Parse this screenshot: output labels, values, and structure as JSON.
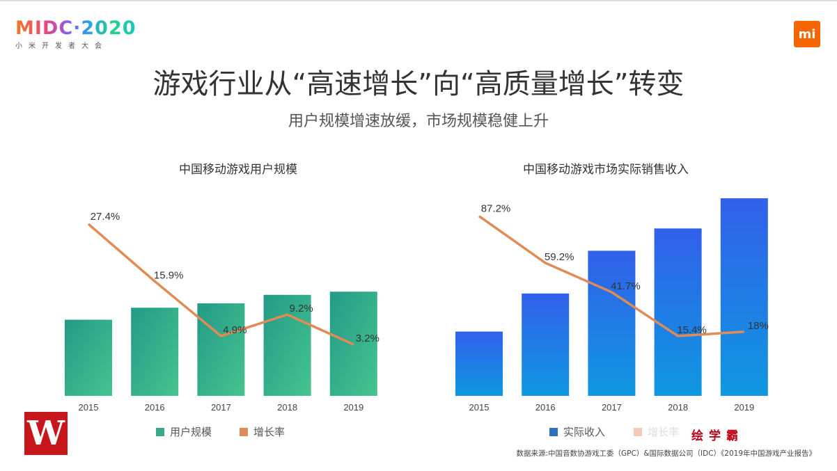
{
  "header": {
    "logo_main": "MIDC·2020",
    "logo_sub": "小米开发者大会",
    "mi_logo": "mi",
    "title": "游戏行业从“高速增长”向“高质量增长”转变",
    "subtitle": "用户规模增速放缓，市场规模稳健上升"
  },
  "chart_data": [
    {
      "type": "bar",
      "title": "中国移动游戏用户规模",
      "categories": [
        "2015",
        "2016",
        "2017",
        "2018",
        "2019"
      ],
      "series": [
        {
          "name": "用户规模",
          "kind": "bar",
          "values": [
            4.56,
            5.28,
            5.54,
            6.05,
            6.24
          ],
          "color": "#2fa88a"
        },
        {
          "name": "增长率",
          "kind": "line",
          "values": [
            27.4,
            15.9,
            4.9,
            9.2,
            3.2
          ],
          "labels": [
            "27.4%",
            "15.9%",
            "4.9%",
            "9.2%",
            "3.2%"
          ],
          "color": "#e08a55"
        }
      ]
    },
    {
      "type": "bar",
      "title": "中国移动游戏市场实际销售收入",
      "categories": [
        "2015",
        "2016",
        "2017",
        "2018",
        "2019"
      ],
      "series": [
        {
          "name": "实际收入",
          "kind": "bar",
          "values": [
            514.6,
            819.2,
            1161.2,
            1339.6,
            1581.1
          ],
          "color": "#2f6ce8"
        },
        {
          "name": "增长率",
          "kind": "line",
          "values": [
            87.2,
            59.2,
            41.7,
            15.4,
            18
          ],
          "labels": [
            "87.2%",
            "59.2%",
            "41.7%",
            "15.4%",
            "18%"
          ],
          "color": "#e08a55"
        }
      ]
    }
  ],
  "legend_colors": {
    "left_bar": "#3aa88a",
    "left_line": "#e08a55",
    "right_bar": "#2f6fc0",
    "right_line": "#f3cbb5"
  },
  "watermark": "绘学霸",
  "corner_logo": "W",
  "source": "数据来源:中国音数协游戏工委（GPC）&国际数据公司（IDC）《2019年中国游戏产业报告》"
}
